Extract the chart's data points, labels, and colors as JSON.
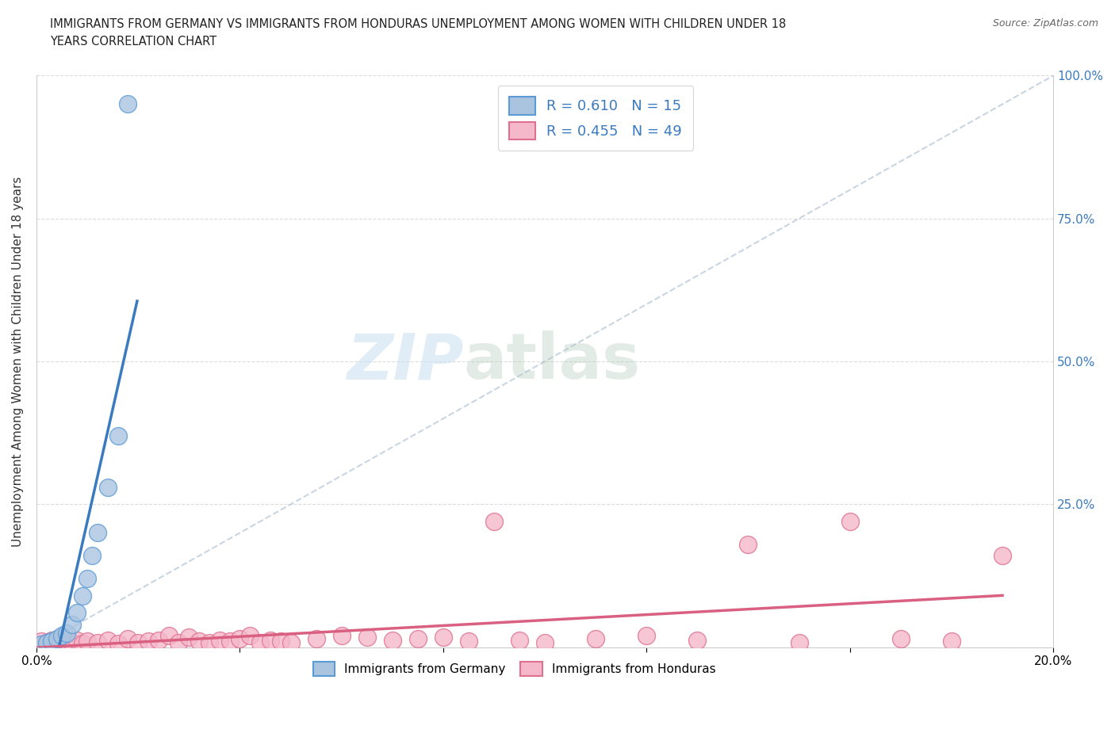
{
  "title": "IMMIGRANTS FROM GERMANY VS IMMIGRANTS FROM HONDURAS UNEMPLOYMENT AMONG WOMEN WITH CHILDREN UNDER 18\nYEARS CORRELATION CHART",
  "source": "Source: ZipAtlas.com",
  "xlabel": "",
  "ylabel": "Unemployment Among Women with Children Under 18 years",
  "xmin": 0.0,
  "xmax": 0.2,
  "ymin": 0.0,
  "ymax": 1.0,
  "xticks": [
    0.0,
    0.04,
    0.08,
    0.12,
    0.16,
    0.2
  ],
  "xticklabels": [
    "0.0%",
    "",
    "",
    "",
    "",
    "20.0%"
  ],
  "yticks": [
    0.0,
    0.25,
    0.5,
    0.75,
    1.0
  ],
  "yticklabels": [
    "",
    "25.0%",
    "50.0%",
    "75.0%",
    "100.0%"
  ],
  "germany_color": "#aac4e0",
  "germany_edge": "#5b9bd5",
  "honduras_color": "#f4b8ca",
  "honduras_edge": "#e07090",
  "trend_germany_color": "#3a7bbf",
  "trend_honduras_color": "#d96080",
  "diagonal_color": "#b8c8d8",
  "R_germany": 0.61,
  "N_germany": 15,
  "R_honduras": 0.455,
  "N_honduras": 49,
  "germany_x": [
    0.001,
    0.002,
    0.003,
    0.004,
    0.005,
    0.006,
    0.007,
    0.008,
    0.009,
    0.01,
    0.011,
    0.012,
    0.014,
    0.016,
    0.018
  ],
  "germany_y": [
    0.005,
    0.008,
    0.01,
    0.015,
    0.02,
    0.025,
    0.04,
    0.06,
    0.09,
    0.12,
    0.16,
    0.2,
    0.28,
    0.37,
    0.95
  ],
  "honduras_x": [
    0.001,
    0.002,
    0.003,
    0.004,
    0.005,
    0.006,
    0.007,
    0.008,
    0.009,
    0.01,
    0.012,
    0.014,
    0.016,
    0.018,
    0.02,
    0.022,
    0.024,
    0.026,
    0.028,
    0.03,
    0.032,
    0.034,
    0.036,
    0.038,
    0.04,
    0.042,
    0.044,
    0.046,
    0.048,
    0.05,
    0.055,
    0.06,
    0.065,
    0.07,
    0.075,
    0.08,
    0.085,
    0.09,
    0.095,
    0.1,
    0.11,
    0.12,
    0.13,
    0.14,
    0.15,
    0.16,
    0.17,
    0.18,
    0.19
  ],
  "honduras_y": [
    0.01,
    0.008,
    0.012,
    0.006,
    0.015,
    0.01,
    0.008,
    0.012,
    0.006,
    0.01,
    0.008,
    0.012,
    0.006,
    0.015,
    0.008,
    0.01,
    0.012,
    0.02,
    0.008,
    0.018,
    0.01,
    0.008,
    0.012,
    0.01,
    0.015,
    0.02,
    0.008,
    0.012,
    0.01,
    0.008,
    0.015,
    0.02,
    0.018,
    0.012,
    0.015,
    0.018,
    0.01,
    0.22,
    0.012,
    0.008,
    0.015,
    0.02,
    0.012,
    0.18,
    0.008,
    0.22,
    0.015,
    0.01,
    0.16
  ],
  "watermark_text": "ZIP",
  "watermark_text2": "atlas",
  "background_color": "#ffffff",
  "grid_color": "#d8d8d8"
}
